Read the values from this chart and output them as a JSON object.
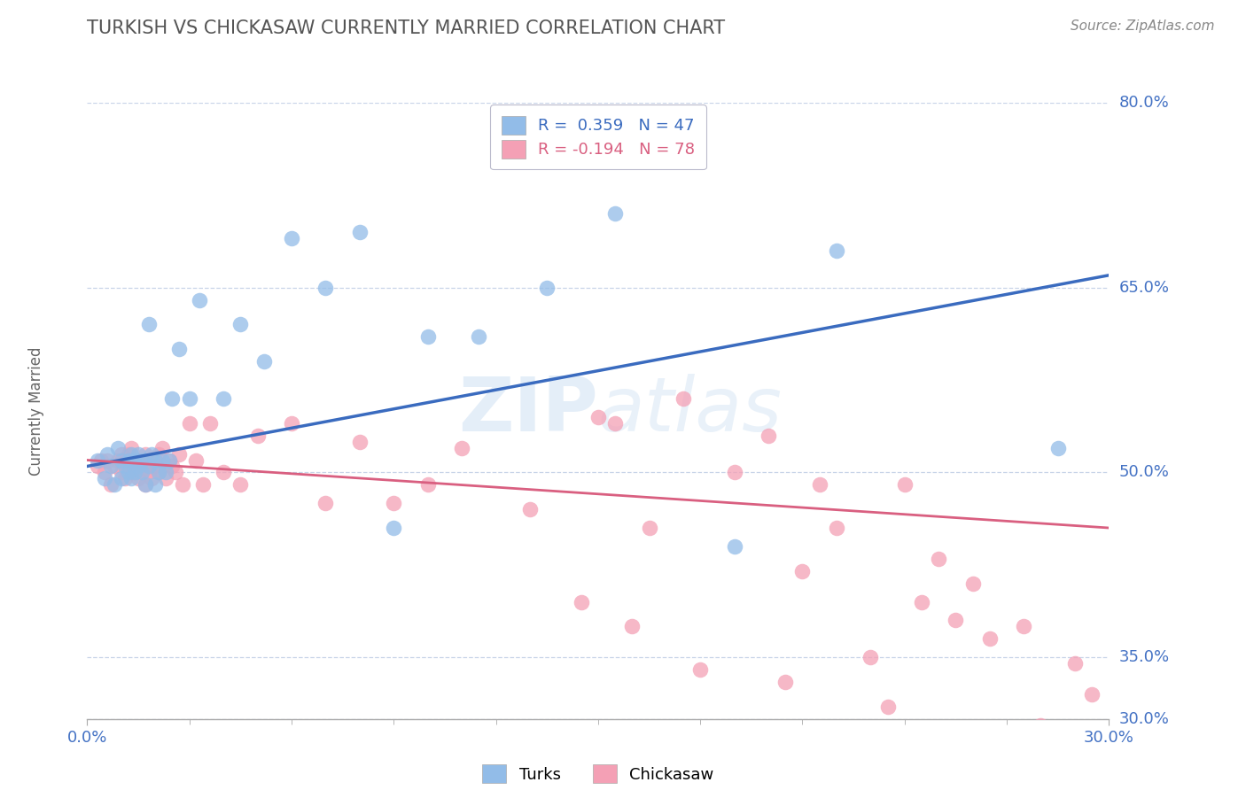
{
  "title": "TURKISH VS CHICKASAW CURRENTLY MARRIED CORRELATION CHART",
  "source": "Source: ZipAtlas.com",
  "ylabel": "Currently Married",
  "xmin": 0.0,
  "xmax": 0.3,
  "ymin": 0.3,
  "ymax": 0.8,
  "yticks": [
    0.3,
    0.35,
    0.5,
    0.65,
    0.8
  ],
  "ytick_labels": [
    "30.0%",
    "35.0%",
    "50.0%",
    "65.0%",
    "80.0%"
  ],
  "turks_R": 0.359,
  "turks_N": 47,
  "chickasaw_R": -0.194,
  "chickasaw_N": 78,
  "turks_color": "#92bce8",
  "chickasaw_color": "#f4a0b5",
  "turks_line_color": "#3a6bbf",
  "chickasaw_line_color": "#d95f80",
  "background_color": "#ffffff",
  "title_color": "#555555",
  "axis_color": "#4472c4",
  "grid_color": "#c8d4e8",
  "turks_line_x0": 0.0,
  "turks_line_x1": 0.3,
  "turks_line_y0": 0.505,
  "turks_line_y1": 0.66,
  "chickasaw_line_x0": 0.0,
  "chickasaw_line_x1": 0.3,
  "chickasaw_line_y0": 0.51,
  "chickasaw_line_y1": 0.455,
  "turks_x": [
    0.003,
    0.005,
    0.006,
    0.007,
    0.008,
    0.009,
    0.01,
    0.01,
    0.011,
    0.012,
    0.012,
    0.013,
    0.013,
    0.014,
    0.014,
    0.015,
    0.015,
    0.016,
    0.016,
    0.017,
    0.018,
    0.018,
    0.019,
    0.02,
    0.02,
    0.021,
    0.022,
    0.023,
    0.024,
    0.025,
    0.027,
    0.03,
    0.033,
    0.04,
    0.045,
    0.052,
    0.06,
    0.07,
    0.08,
    0.09,
    0.1,
    0.115,
    0.135,
    0.155,
    0.19,
    0.22,
    0.285
  ],
  "turks_y": [
    0.51,
    0.495,
    0.515,
    0.505,
    0.49,
    0.52,
    0.51,
    0.495,
    0.505,
    0.51,
    0.5,
    0.515,
    0.495,
    0.5,
    0.51,
    0.515,
    0.505,
    0.5,
    0.51,
    0.49,
    0.62,
    0.505,
    0.515,
    0.49,
    0.51,
    0.5,
    0.51,
    0.5,
    0.51,
    0.56,
    0.6,
    0.56,
    0.64,
    0.56,
    0.62,
    0.59,
    0.69,
    0.65,
    0.695,
    0.455,
    0.61,
    0.61,
    0.65,
    0.71,
    0.44,
    0.68,
    0.52
  ],
  "chickasaw_x": [
    0.003,
    0.004,
    0.005,
    0.006,
    0.007,
    0.008,
    0.009,
    0.01,
    0.01,
    0.011,
    0.011,
    0.012,
    0.012,
    0.013,
    0.013,
    0.014,
    0.014,
    0.015,
    0.015,
    0.016,
    0.016,
    0.017,
    0.017,
    0.018,
    0.018,
    0.019,
    0.019,
    0.02,
    0.02,
    0.021,
    0.021,
    0.022,
    0.022,
    0.023,
    0.024,
    0.025,
    0.026,
    0.027,
    0.028,
    0.03,
    0.032,
    0.034,
    0.036,
    0.04,
    0.045,
    0.05,
    0.06,
    0.07,
    0.08,
    0.09,
    0.1,
    0.11,
    0.13,
    0.155,
    0.165,
    0.19,
    0.2,
    0.215,
    0.22,
    0.24,
    0.25,
    0.26,
    0.275,
    0.29,
    0.295,
    0.15,
    0.175,
    0.205,
    0.23,
    0.245,
    0.265,
    0.21,
    0.235,
    0.255,
    0.28,
    0.18,
    0.16,
    0.145
  ],
  "chickasaw_y": [
    0.505,
    0.51,
    0.5,
    0.51,
    0.49,
    0.505,
    0.51,
    0.515,
    0.5,
    0.51,
    0.495,
    0.5,
    0.515,
    0.505,
    0.52,
    0.51,
    0.5,
    0.495,
    0.51,
    0.505,
    0.5,
    0.515,
    0.49,
    0.505,
    0.5,
    0.51,
    0.495,
    0.505,
    0.51,
    0.515,
    0.5,
    0.505,
    0.52,
    0.495,
    0.51,
    0.505,
    0.5,
    0.515,
    0.49,
    0.54,
    0.51,
    0.49,
    0.54,
    0.5,
    0.49,
    0.53,
    0.54,
    0.475,
    0.525,
    0.475,
    0.49,
    0.52,
    0.47,
    0.54,
    0.455,
    0.5,
    0.53,
    0.49,
    0.455,
    0.49,
    0.43,
    0.41,
    0.375,
    0.345,
    0.32,
    0.545,
    0.56,
    0.33,
    0.35,
    0.395,
    0.365,
    0.42,
    0.31,
    0.38,
    0.295,
    0.34,
    0.375,
    0.395
  ]
}
